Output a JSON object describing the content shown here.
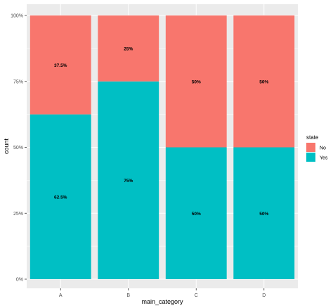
{
  "chart_data": {
    "type": "bar",
    "stacked": "percent",
    "categories": [
      "A",
      "B",
      "C",
      "D"
    ],
    "series": [
      {
        "name": "No",
        "color": "#F8766D",
        "values": [
          37.5,
          25,
          50,
          50
        ],
        "labels": [
          "37.5%",
          "25%",
          "50%",
          "50%"
        ],
        "label_bold": [
          true,
          false,
          true,
          true
        ]
      },
      {
        "name": "Yes",
        "color": "#00BFC4",
        "values": [
          62.5,
          75,
          50,
          50
        ],
        "labels": [
          "62.5%",
          "75%",
          "50%",
          "50%"
        ],
        "label_bold": [
          true,
          true,
          false,
          false
        ]
      }
    ],
    "xlabel": "main_category",
    "ylabel": "count",
    "ylim": [
      0,
      100
    ],
    "yticks": [
      "0%",
      "25%",
      "50%",
      "75%",
      "100%"
    ],
    "ytick_values": [
      0,
      25,
      50,
      75,
      100
    ],
    "legend": {
      "title": "state",
      "position": "right"
    },
    "grid": true,
    "panel_background": "#EBEBEB"
  }
}
